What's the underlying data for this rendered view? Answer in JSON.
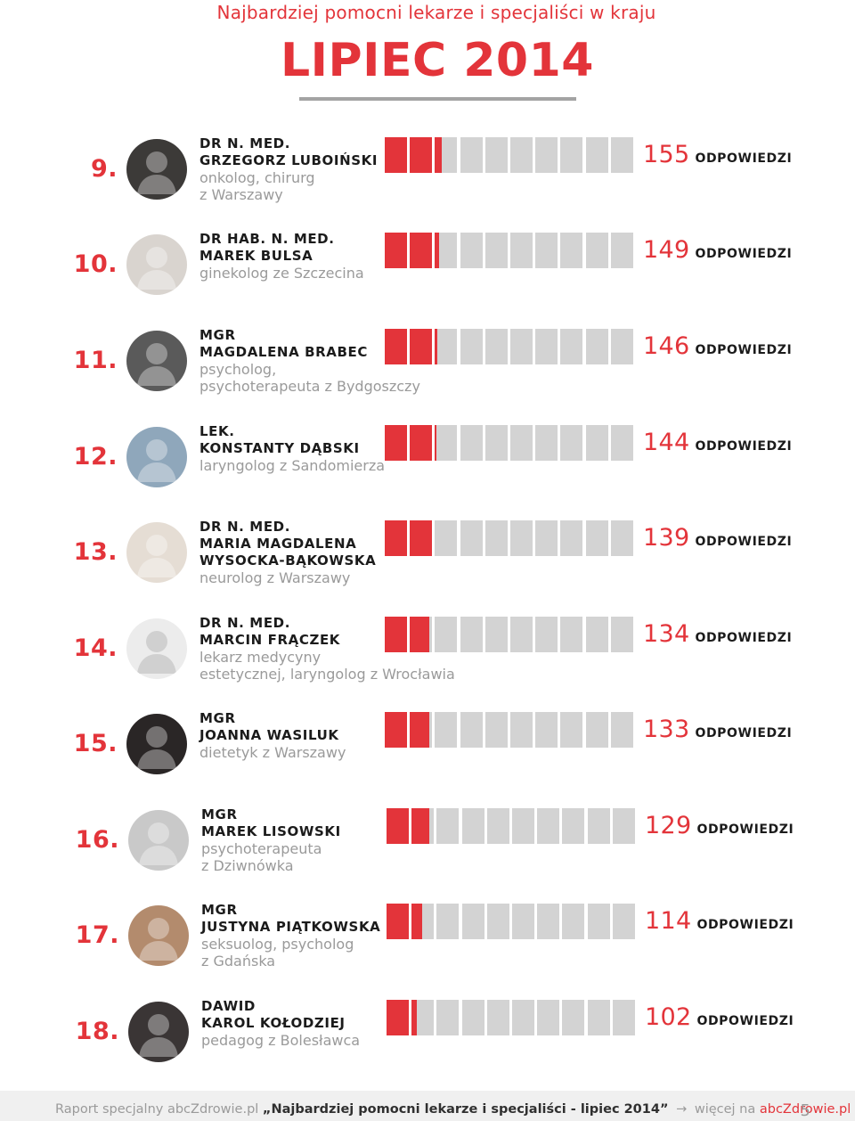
{
  "header": {
    "subtitle": "Najbardziej pomocni lekarze i specjaliści w kraju",
    "title": "LIPIEC 2014"
  },
  "count_label": "ODPOWIEDZI",
  "colors": {
    "accent": "#e3343a",
    "bar_empty": "#d3d3d3",
    "text_dark": "#1b1b1b",
    "text_muted": "#9a9a9a"
  },
  "entries": [
    {
      "rank": "9.",
      "title": "DR N. MED.",
      "name": "GRZEGORZ LUBOIŃSKI",
      "desc1": "onkolog, chirurg",
      "desc2": "z Warszawy",
      "count": "155",
      "value": 155
    },
    {
      "rank": "10.",
      "title": "DR HAB. N. MED.",
      "name": "MAREK BULSA",
      "desc1": "ginekolog ze Szczecina",
      "desc2": "",
      "count": "149",
      "value": 149
    },
    {
      "rank": "11.",
      "title": "MGR",
      "name": "MAGDALENA BRABEC",
      "desc1": "psycholog,",
      "desc2": "psychoterapeuta z Bydgoszczy",
      "count": "146",
      "value": 146
    },
    {
      "rank": "12.",
      "title": "LEK.",
      "name": "KONSTANTY DĄBSKI",
      "desc1": "laryngolog z Sandomierza",
      "desc2": "",
      "count": "144",
      "value": 144
    },
    {
      "rank": "13.",
      "title": "DR N. MED.",
      "name": "MARIA MAGDALENA",
      "name2": "WYSOCKA-BĄKOWSKA",
      "desc1": "neurolog z Warszawy",
      "desc2": "",
      "count": "139",
      "value": 139
    },
    {
      "rank": "14.",
      "title": "DR N. MED.",
      "name": "MARCIN FRĄCZEK",
      "desc1": "lekarz medycyny",
      "desc2": "estetycznej, laryngolog z Wrocławia",
      "count": "134",
      "value": 134
    },
    {
      "rank": "15.",
      "title": "MGR",
      "name": "JOANNA WASILUK",
      "desc1": "dietetyk z Warszawy",
      "desc2": "",
      "count": "133",
      "value": 133
    },
    {
      "rank": "16.",
      "title": "MGR",
      "name": "MAREK LISOWSKI",
      "desc1": "psychoterapeuta",
      "desc2": "z Dziwnówka",
      "count": "129",
      "value": 129
    },
    {
      "rank": "17.",
      "title": "MGR",
      "name": "JUSTYNA PIĄTKOWSKA",
      "desc1": "seksuolog, psycholog",
      "desc2": "z Gdańska",
      "count": "114",
      "value": 114
    },
    {
      "rank": "18.",
      "title": "DAWID",
      "name": "KAROL KOŁODZIEJ",
      "desc1": "pedagog z Bolesławca",
      "desc2": "",
      "count": "102",
      "value": 102
    }
  ],
  "footer": {
    "prefix": "Raport specjalny abcZdrowie.pl",
    "report_title": "„Najbardziej pomocni lekarze i specjaliści - lipiec 2014”",
    "more": "więcej na",
    "link": "abcZdrowie.pl",
    "page": "5"
  }
}
